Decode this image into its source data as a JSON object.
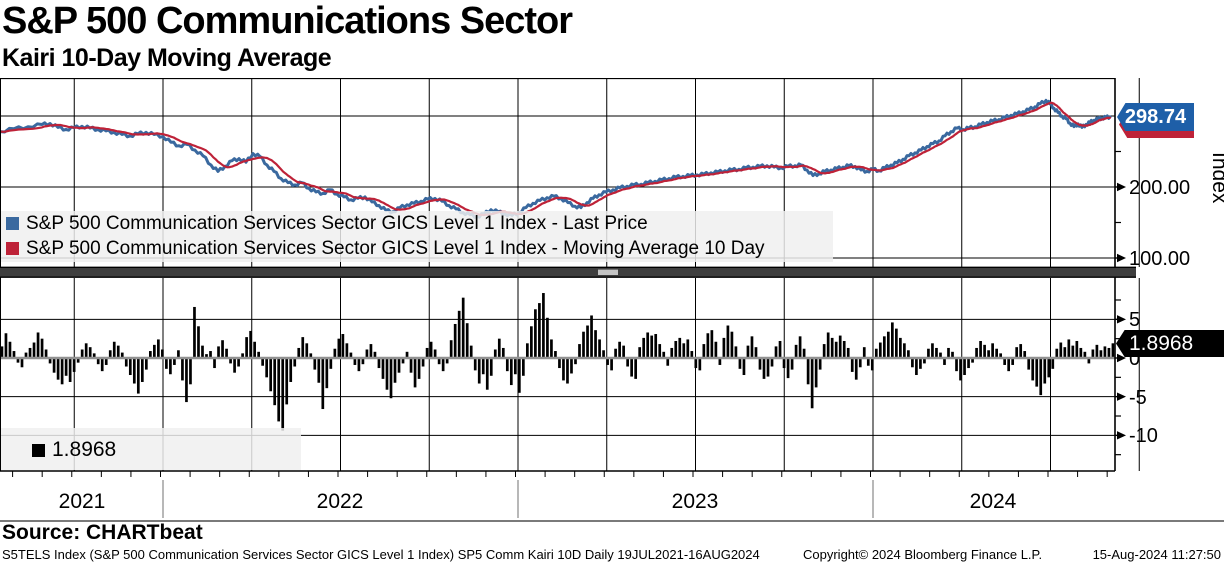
{
  "title": "S&P 500 Communications Sector",
  "subtitle": "Kairi 10-Day Moving Average",
  "source_label": "Source: CHARTbeat",
  "footer": {
    "left": "S5TELS Index (S&P 500 Communication Services Sector GICS Level 1 Index) SP5 Comm Kairi 10D  Daily 19JUL2021-16AUG2024",
    "center": "Copyright© 2024 Bloomberg Finance L.P.",
    "right": "15-Aug-2024 11:27:50"
  },
  "colors": {
    "price_line": "#3A699F",
    "ma_line": "#BE2238",
    "price_tag_bg": "#1E5FA8",
    "ma_tag_bg": "#BE2238",
    "kairi_tag_bg": "#000000",
    "kairi_bar": "#000000",
    "grid": "#000000",
    "zero_line": "#919191",
    "legend_bg": "#EFEFEF",
    "separator": "#3E3E3E"
  },
  "chart_data": [
    {
      "type": "line",
      "panel": "price",
      "ylabel": "Index",
      "last_value_label": "298.74",
      "ylim": [
        83,
        355
      ],
      "ygrid": [
        300,
        200,
        100
      ],
      "yticks": [
        {
          "v": 200,
          "label": "200.00"
        },
        {
          "v": 100,
          "label": "100.00"
        }
      ],
      "yticks_minor": [
        250,
        150
      ],
      "x_axis": {
        "start": "19JUL2021",
        "end": "16AUG2024",
        "year_labels": [
          "2021",
          "2022",
          "2023",
          "2024"
        ]
      },
      "series": [
        {
          "name": "S&P 500 Communication Services Sector GICS Level 1 Index - Last Price",
          "color": "#3A699F",
          "points": [
            [
              0,
              278
            ],
            [
              14,
              282
            ],
            [
              28,
              285
            ],
            [
              42,
              288
            ],
            [
              50,
              289.5
            ],
            [
              58,
              284
            ],
            [
              66,
              281
            ],
            [
              74,
              283.5
            ],
            [
              82,
              285.5
            ],
            [
              90,
              283
            ],
            [
              98,
              281
            ],
            [
              106,
              279
            ],
            [
              114,
              277
            ],
            [
              122,
              274
            ],
            [
              130,
              272
            ],
            [
              138,
              275
            ],
            [
              146,
              277
            ],
            [
              154,
              274
            ],
            [
              163,
              271
            ],
            [
              171,
              263
            ],
            [
              179,
              258
            ],
            [
              187,
              260
            ],
            [
              195,
              252
            ],
            [
              203,
              244
            ],
            [
              211,
              231
            ],
            [
              218,
              222
            ],
            [
              225,
              229
            ],
            [
              232,
              237
            ],
            [
              239,
              240
            ],
            [
              246,
              235
            ],
            [
              253,
              247
            ],
            [
              260,
              243
            ],
            [
              267,
              231
            ],
            [
              274,
              222
            ],
            [
              281,
              212
            ],
            [
              288,
              206
            ],
            [
              295,
              203
            ],
            [
              302,
              206
            ],
            [
              309,
              198
            ],
            [
              316,
              193
            ],
            [
              323,
              191
            ],
            [
              330,
              196
            ],
            [
              337,
              190
            ],
            [
              344,
              186
            ],
            [
              351,
              182
            ],
            [
              358,
              184
            ],
            [
              365,
              186
            ],
            [
              372,
              179
            ],
            [
              379,
              174
            ],
            [
              386,
              167
            ],
            [
              393,
              165
            ],
            [
              400,
              171
            ],
            [
              407,
              175
            ],
            [
              414,
              177
            ],
            [
              421,
              180
            ],
            [
              428,
              183
            ],
            [
              435,
              184
            ],
            [
              442,
              180
            ],
            [
              449,
              174
            ],
            [
              456,
              169
            ],
            [
              463,
              164
            ],
            [
              470,
              161
            ],
            [
              477,
              158
            ],
            [
              484,
              162
            ],
            [
              491,
              168
            ],
            [
              498,
              165
            ],
            [
              505,
              162
            ],
            [
              512,
              160
            ],
            [
              519,
              164
            ],
            [
              526,
              171
            ],
            [
              533,
              177
            ],
            [
              540,
              181
            ],
            [
              547,
              185
            ],
            [
              554,
              187
            ],
            [
              561,
              184
            ],
            [
              568,
              178
            ],
            [
              575,
              173
            ],
            [
              581,
              171
            ],
            [
              587,
              178
            ],
            [
              593,
              184
            ],
            [
              599,
              189
            ],
            [
              606,
              193
            ],
            [
              613,
              196
            ],
            [
              620,
              199
            ],
            [
              627,
              201
            ],
            [
              634,
              203
            ],
            [
              641,
              204
            ],
            [
              648,
              206
            ],
            [
              655,
              208
            ],
            [
              662,
              210
            ],
            [
              669,
              212
            ],
            [
              676,
              214
            ],
            [
              683,
              215
            ],
            [
              690,
              216
            ],
            [
              697,
              217
            ],
            [
              704,
              218
            ],
            [
              711,
              220
            ],
            [
              718,
              221
            ],
            [
              725,
              223
            ],
            [
              732,
              224
            ],
            [
              739,
              225
            ],
            [
              746,
              227
            ],
            [
              753,
              228
            ],
            [
              760,
              229
            ],
            [
              767,
              230
            ],
            [
              774,
              228
            ],
            [
              781,
              227
            ],
            [
              788,
              229
            ],
            [
              795,
              230
            ],
            [
              801,
              231
            ],
            [
              807,
              224
            ],
            [
              813,
              216
            ],
            [
              819,
              219
            ],
            [
              825,
              222
            ],
            [
              831,
              224
            ],
            [
              837,
              226
            ],
            [
              843,
              228
            ],
            [
              849,
              230
            ],
            [
              855,
              229
            ],
            [
              861,
              224
            ],
            [
              867,
              222
            ],
            [
              873,
              225
            ],
            [
              879,
              223
            ],
            [
              885,
              227
            ],
            [
              891,
              231
            ],
            [
              897,
              234
            ],
            [
              903,
              239
            ],
            [
              909,
              244
            ],
            [
              915,
              248
            ],
            [
              921,
              252
            ],
            [
              927,
              257
            ],
            [
              933,
              261
            ],
            [
              939,
              265
            ],
            [
              945,
              272
            ],
            [
              951,
              278
            ],
            [
              957,
              283
            ],
            [
              963,
              281
            ],
            [
              969,
              283
            ],
            [
              975,
              285
            ],
            [
              981,
              288
            ],
            [
              987,
              291
            ],
            [
              993,
              293
            ],
            [
              999,
              295
            ],
            [
              1005,
              298
            ],
            [
              1011,
              301
            ],
            [
              1017,
              303
            ],
            [
              1023,
              306
            ],
            [
              1029,
              309
            ],
            [
              1035,
              313
            ],
            [
              1040,
              317
            ],
            [
              1046,
              322
            ],
            [
              1050,
              317
            ],
            [
              1054,
              311
            ],
            [
              1058,
              305
            ],
            [
              1062,
              300
            ],
            [
              1066,
              296
            ],
            [
              1070,
              290
            ],
            [
              1074,
              285
            ],
            [
              1078,
              289
            ],
            [
              1082,
              284
            ],
            [
              1086,
              288
            ],
            [
              1090,
              291
            ],
            [
              1094,
              294
            ],
            [
              1098,
              296
            ],
            [
              1102,
              297
            ],
            [
              1106,
              298
            ],
            [
              1110,
              298.74
            ]
          ]
        },
        {
          "name": "S&P 500 Communication Services Sector GICS Level 1 Index - Moving Average 10 Day",
          "color": "#BE2238",
          "derived": "10-day moving average of Last Price"
        }
      ]
    },
    {
      "type": "bar",
      "panel": "kairi-oscillator",
      "name": "Kairi 10-Day Moving Average",
      "legend_value": "1.8968",
      "last_value_label": "1.8968",
      "last_value": 1.8968,
      "ylim": [
        -14.6,
        10
      ],
      "ygrid": [
        5,
        -5,
        -10
      ],
      "yticks": [
        {
          "v": 5,
          "label": "5"
        },
        {
          "v": 0,
          "label": "0"
        },
        {
          "v": -5,
          "label": "-5"
        },
        {
          "v": -10,
          "label": "-10"
        }
      ],
      "yticks_minor": [
        7.5,
        2.5,
        -2.5,
        -7.5,
        -12.5
      ],
      "values": [
        1.5,
        3.2,
        2.1,
        0.9,
        -0.6,
        -1.2,
        0.7,
        1.3,
        2.0,
        3.3,
        2.5,
        1.1,
        -0.7,
        -1.9,
        -2.8,
        -3.4,
        -2.3,
        -3.1,
        -1.8,
        -0.6,
        1.1,
        1.9,
        1.4,
        0.6,
        -0.8,
        -1.7,
        -0.9,
        1.0,
        2.1,
        1.6,
        0.7,
        -1.1,
        -2.2,
        -3.3,
        -4.6,
        -3.1,
        -1.5,
        0.9,
        1.7,
        2.4,
        1.1,
        -1.4,
        -2.1,
        -0.9,
        1.0,
        -2.9,
        -5.7,
        -3.4,
        6.6,
        4.1,
        1.6,
        0.5,
        0.9,
        -1.3,
        1.5,
        2.3,
        1.2,
        -0.7,
        -1.9,
        -1.1,
        0.6,
        2.7,
        3.5,
        2.1,
        0.8,
        -1.0,
        -2.5,
        -4.3,
        -6.1,
        -8.2,
        -9.4,
        -6.0,
        -3.1,
        -1.1,
        1.3,
        2.7,
        1.9,
        0.6,
        -1.5,
        -3.2,
        -6.6,
        -3.9,
        -1.4,
        1.2,
        2.5,
        3.1,
        1.9,
        0.7,
        -0.9,
        -1.7,
        -0.8,
        1.1,
        1.8,
        0.8,
        -1.3,
        -2.7,
        -4.1,
        -5.2,
        -3.2,
        -1.9,
        -0.7,
        0.8,
        -1.9,
        -3.8,
        -2.7,
        -1.1,
        1.3,
        2.1,
        1.1,
        -0.8,
        -1.7,
        -0.7,
        2.3,
        4.4,
        6.1,
        7.8,
        4.5,
        1.6,
        -1.6,
        -3.3,
        -2.1,
        -4.1,
        -2.3,
        1.1,
        2.5,
        1.3,
        -1.7,
        -3.5,
        -2.1,
        -4.5,
        -2.3,
        1.9,
        4.1,
        6.3,
        7.1,
        8.4,
        5.2,
        2.4,
        0.9,
        -1.3,
        -2.9,
        -3.3,
        -2.0,
        -0.8,
        1.8,
        3.4,
        4.2,
        5.5,
        3.6,
        2.4,
        1.0,
        -0.9,
        -1.6,
        1.2,
        2.1,
        1.6,
        -1.1,
        -2.4,
        -2.7,
        1.4,
        2.6,
        3.3,
        2.9,
        3.1,
        1.8,
        0.8,
        -1.0,
        1.3,
        2.2,
        2.6,
        1.9,
        2.4,
        0.9,
        -1.3,
        -1.6,
        1.8,
        3.2,
        3.6,
        2.1,
        -0.9,
        2.6,
        4.2,
        3.4,
        1.5,
        -1.4,
        -2.2,
        1.6,
        2.8,
        1.4,
        -1.5,
        -2.7,
        -2.4,
        -1.1,
        1.5,
        2.2,
        -1.3,
        -2.6,
        -1.5,
        1.7,
        2.8,
        1.2,
        -3.4,
        -6.5,
        -3.8,
        -1.5,
        1.8,
        3.3,
        2.6,
        2.1,
        2.9,
        2.2,
        1.3,
        -1.8,
        -2.8,
        -1.2,
        1.4,
        -1.0,
        -1.6,
        1.2,
        2.0,
        2.8,
        3.4,
        4.6,
        3.8,
        2.6,
        1.9,
        1.0,
        -1.2,
        -2.2,
        -1.4,
        -0.7,
        1.2,
        1.9,
        1.3,
        0.7,
        -0.9,
        1.3,
        0.8,
        -1.7,
        -2.9,
        -2.2,
        -1.3,
        -0.6,
        1.3,
        2.2,
        1.7,
        1.0,
        1.9,
        1.2,
        0.6,
        -0.9,
        -1.7,
        -0.9,
        1.4,
        1.8,
        0.9,
        -1.5,
        -2.9,
        -3.7,
        -4.8,
        -3.3,
        -2.5,
        -1.4,
        1.2,
        2.0,
        1.4,
        2.4,
        1.6,
        2.2,
        1.3,
        0.8,
        -0.7,
        1.1,
        1.7,
        1.0,
        1.5,
        1.3,
        1.9
      ]
    }
  ]
}
